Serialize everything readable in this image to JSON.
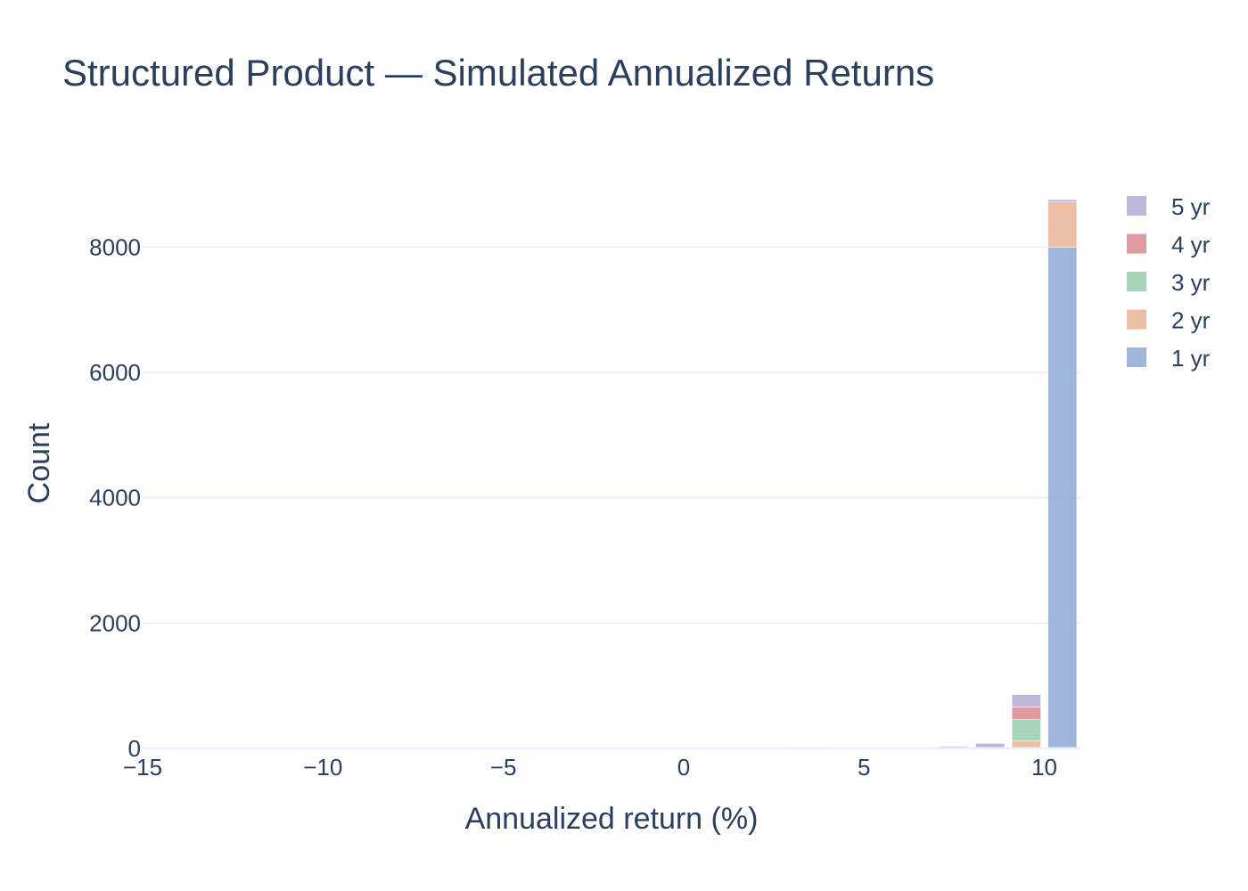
{
  "chart_data": {
    "type": "bar",
    "title": "Structured Product — Simulated Annualized Returns",
    "xlabel": "Annualized return (%)",
    "ylabel": "Count",
    "xlim": [
      -15,
      11
    ],
    "ylim": [
      0,
      9100
    ],
    "xticks": [
      -15,
      -10,
      -5,
      0,
      5,
      10
    ],
    "xtick_labels": [
      "−15",
      "−10",
      "−5",
      "0",
      "5",
      "10"
    ],
    "yticks": [
      0,
      2000,
      4000,
      6000,
      8000
    ],
    "ytick_labels": [
      "0",
      "2000",
      "4000",
      "6000",
      "8000"
    ],
    "grid": true,
    "barmode": "stack",
    "legend_position": "right",
    "bin_starts": [
      -15,
      -14,
      -13,
      -12,
      -11,
      -10,
      -9,
      -8,
      -7,
      -6,
      -5,
      -4,
      -3,
      -2,
      -1,
      0,
      1,
      2,
      3,
      4,
      5,
      6,
      7,
      8,
      9,
      10
    ],
    "bin_width": 1,
    "series": [
      {
        "name": "1 yr",
        "color": "#8fa8d3",
        "values": [
          0,
          0,
          0,
          0,
          0,
          0,
          0,
          0,
          0,
          0,
          0,
          0,
          0,
          0,
          0,
          0,
          0,
          0,
          0,
          0,
          0,
          0,
          0,
          0,
          0,
          8000
        ]
      },
      {
        "name": "2 yr",
        "color": "#eab498",
        "values": [
          0,
          0,
          0,
          0,
          0,
          0,
          0,
          0,
          0,
          0,
          0,
          0,
          0,
          0,
          0,
          0,
          0,
          0,
          0,
          0,
          0,
          0,
          0,
          0,
          120,
          720
        ]
      },
      {
        "name": "3 yr",
        "color": "#96cfaa",
        "values": [
          0,
          0,
          0,
          0,
          0,
          0,
          0,
          0,
          0,
          0,
          0,
          0,
          0,
          0,
          0,
          0,
          0,
          0,
          0,
          0,
          0,
          0,
          0,
          0,
          340,
          0
        ]
      },
      {
        "name": "4 yr",
        "color": "#d9898f",
        "values": [
          0,
          0,
          0,
          0,
          0,
          0,
          0,
          0,
          0,
          0,
          0,
          0,
          0,
          0,
          0,
          0,
          0,
          0,
          0,
          0,
          0,
          0,
          0,
          0,
          200,
          0
        ]
      },
      {
        "name": "5 yr",
        "color": "#b3acd5",
        "values": [
          2,
          2,
          2,
          2,
          2,
          3,
          3,
          3,
          3,
          4,
          8,
          10,
          6,
          5,
          12,
          12,
          14,
          16,
          22,
          18,
          20,
          25,
          35,
          80,
          200,
          40
        ]
      }
    ],
    "legend_order": [
      "5 yr",
      "4 yr",
      "3 yr",
      "2 yr",
      "1 yr"
    ]
  }
}
